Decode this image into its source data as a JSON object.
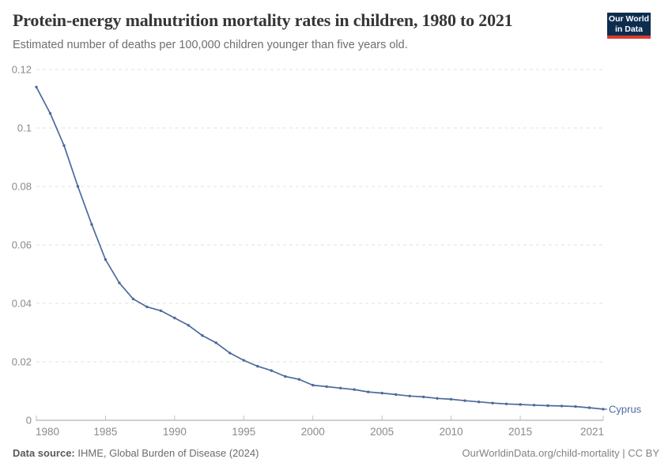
{
  "header": {
    "logo": {
      "line1": "Our World",
      "line2": "in Data"
    }
  },
  "colors": {
    "line": "#4C6A9C",
    "entity_label": "#4C6A9C",
    "gridline": "#e0e0e0",
    "axis": "#a0a0a0",
    "tick": "#c2c2c2",
    "tick_label": "#8a8a8a",
    "logo_bg": "#0d2d4f",
    "logo_bar": "#dc3a2c"
  },
  "chart_data": {
    "type": "line",
    "title": "Protein-energy malnutrition mortality rates in children, 1980 to 2021",
    "subtitle": "Estimated number of deaths per 100,000 children younger than five years old.",
    "xlabel": "",
    "ylabel": "",
    "xlim": [
      1980,
      2021
    ],
    "ylim": [
      0,
      0.12
    ],
    "grid": "horizontal-dashed",
    "legend_position": "end-of-line-label",
    "yticks": [
      {
        "v": 0,
        "label": "0"
      },
      {
        "v": 0.02,
        "label": "0.02"
      },
      {
        "v": 0.04,
        "label": "0.04"
      },
      {
        "v": 0.06,
        "label": "0.06"
      },
      {
        "v": 0.08,
        "label": "0.08"
      },
      {
        "v": 0.1,
        "label": "0.1"
      },
      {
        "v": 0.12,
        "label": "0.12"
      }
    ],
    "xticks": [
      {
        "v": 1980,
        "label": "1980"
      },
      {
        "v": 1985,
        "label": "1985"
      },
      {
        "v": 1990,
        "label": "1990"
      },
      {
        "v": 1995,
        "label": "1995"
      },
      {
        "v": 2000,
        "label": "2000"
      },
      {
        "v": 2005,
        "label": "2005"
      },
      {
        "v": 2010,
        "label": "2010"
      },
      {
        "v": 2015,
        "label": "2015"
      },
      {
        "v": 2021,
        "label": "2021"
      }
    ],
    "series": [
      {
        "name": "Cyprus",
        "color": "#4C6A9C",
        "x": [
          1980,
          1981,
          1982,
          1983,
          1984,
          1985,
          1986,
          1987,
          1988,
          1989,
          1990,
          1991,
          1992,
          1993,
          1994,
          1995,
          1996,
          1997,
          1998,
          1999,
          2000,
          2001,
          2002,
          2003,
          2004,
          2005,
          2006,
          2007,
          2008,
          2009,
          2010,
          2011,
          2012,
          2013,
          2014,
          2015,
          2016,
          2017,
          2018,
          2019,
          2020,
          2021
        ],
        "values": [
          0.114,
          0.105,
          0.094,
          0.08,
          0.067,
          0.055,
          0.047,
          0.0415,
          0.0388,
          0.0375,
          0.035,
          0.0325,
          0.029,
          0.0265,
          0.023,
          0.0205,
          0.0185,
          0.017,
          0.015,
          0.014,
          0.012,
          0.0115,
          0.011,
          0.0105,
          0.0097,
          0.0093,
          0.0088,
          0.0083,
          0.008,
          0.0075,
          0.0072,
          0.0067,
          0.0063,
          0.0059,
          0.0056,
          0.0054,
          0.0052,
          0.005,
          0.0049,
          0.0047,
          0.0043,
          0.0038
        ]
      }
    ]
  },
  "footer": {
    "source_label": "Data source:",
    "source_value": "IHME, Global Burden of Disease (2024)",
    "credit": "OurWorldinData.org/child-mortality | CC BY"
  }
}
